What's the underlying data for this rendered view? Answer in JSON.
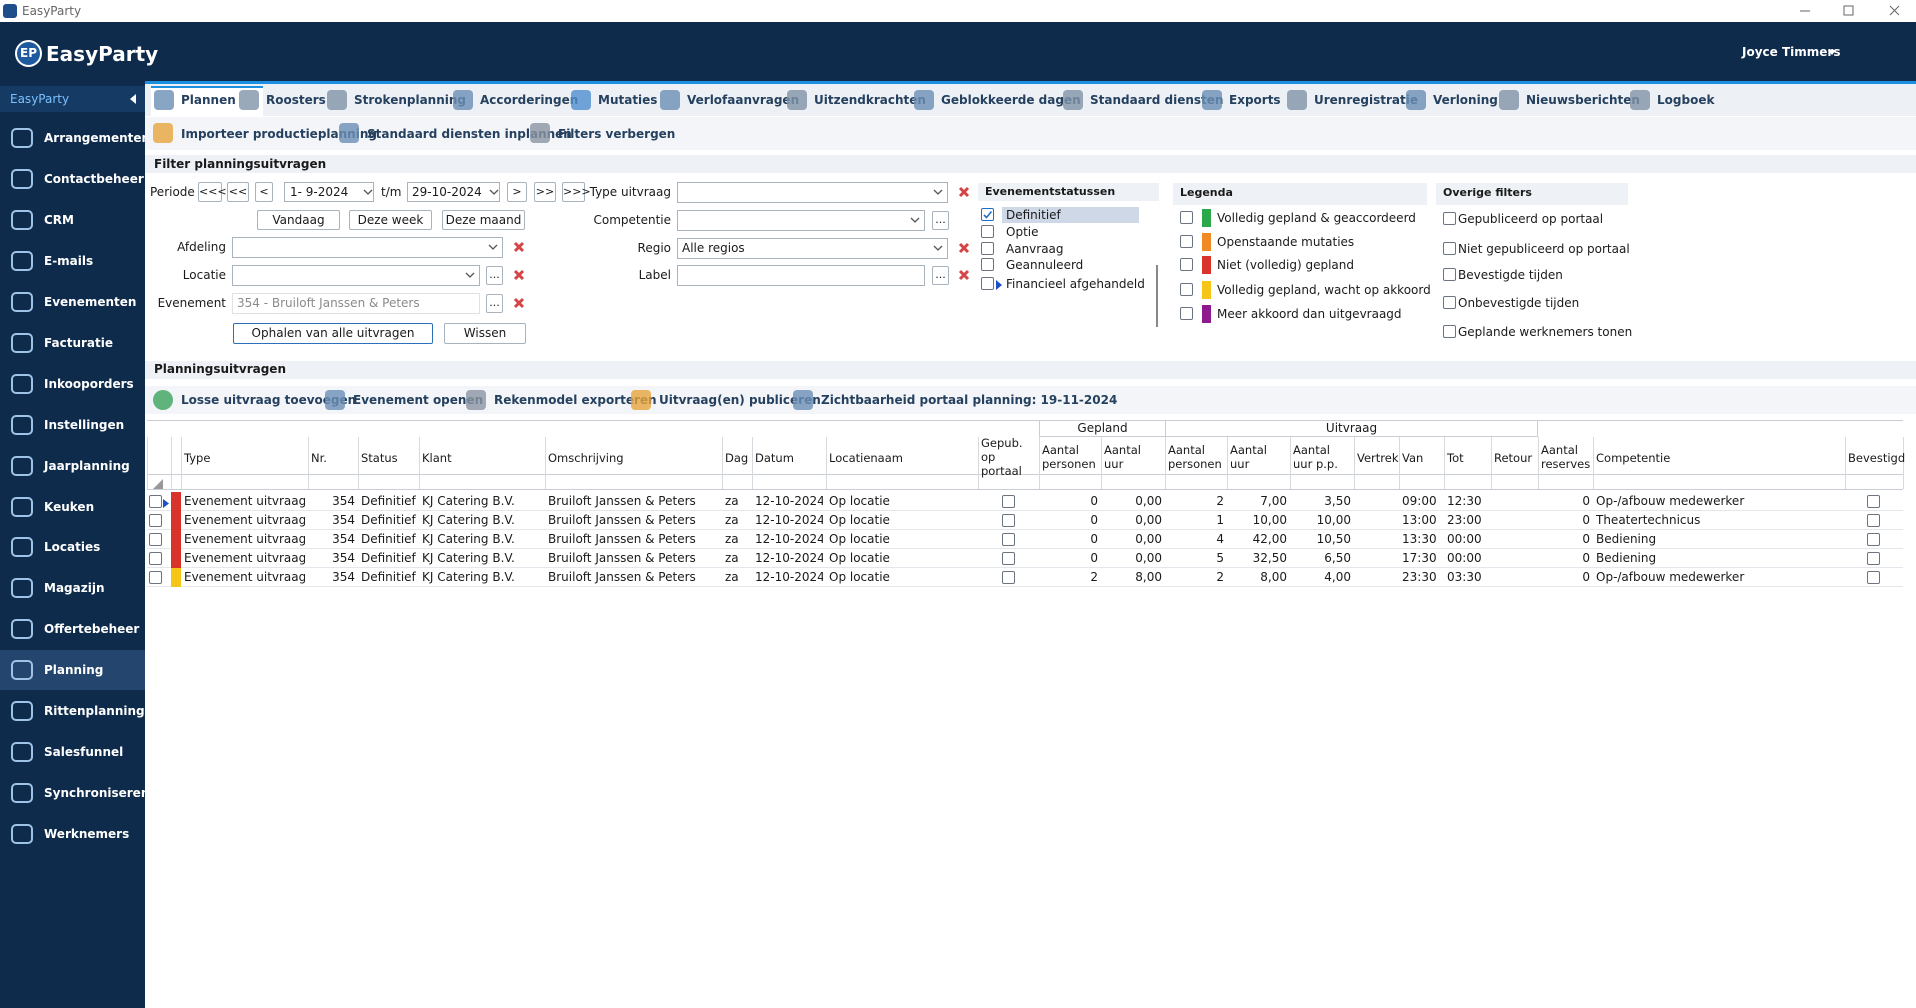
{
  "window_title": "EasyParty",
  "header": {
    "logo_badge": "EP",
    "logo": "EasyParty",
    "user": "Joyce Timmers"
  },
  "sidebar": {
    "title": "EasyParty",
    "items": [
      {
        "label": "Arrangementen"
      },
      {
        "label": "Contactbeheer"
      },
      {
        "label": "CRM"
      },
      {
        "label": "E-mails"
      },
      {
        "label": "Evenementen"
      },
      {
        "label": "Facturatie"
      },
      {
        "label": "Inkooporders"
      },
      {
        "label": "Instellingen"
      },
      {
        "label": "Jaarplanning"
      },
      {
        "label": "Keuken"
      },
      {
        "label": "Locaties"
      },
      {
        "label": "Magazijn"
      },
      {
        "label": "Offertebeheer"
      },
      {
        "label": "Planning",
        "selected": true
      },
      {
        "label": "Rittenplanning"
      },
      {
        "label": "Salesfunnel"
      },
      {
        "label": "Synchroniseren"
      },
      {
        "label": "Werknemers"
      }
    ]
  },
  "tabs": [
    {
      "label": "Plannen",
      "selected": true
    },
    {
      "label": "Roosters"
    },
    {
      "label": "Strokenplanning"
    },
    {
      "label": "Accorderingen"
    },
    {
      "label": "Mutaties"
    },
    {
      "label": "Verlofaanvragen"
    },
    {
      "label": "Uitzendkrachten"
    },
    {
      "label": "Geblokkeerde dagen"
    },
    {
      "label": "Standaard diensten"
    },
    {
      "label": "Exports"
    },
    {
      "label": "Urenregistratie"
    },
    {
      "label": "Verloning"
    },
    {
      "label": "Nieuwsberichten"
    },
    {
      "label": "Logboek"
    }
  ],
  "toolbar": [
    "Importeer productieplanning",
    "Standaard diensten inplannen",
    "Filters verbergen"
  ],
  "filter": {
    "title": "Filter planningsuitvragen",
    "periode": {
      "label": "Periode",
      "back3": "<<<",
      "back2": "<<",
      "back1": "<",
      "from": "1- 9-2024",
      "tm": "t/m",
      "to": "29-10-2024",
      "fwd1": ">",
      "fwd2": ">>",
      "fwd3": ">>>"
    },
    "quick": [
      "Vandaag",
      "Deze week",
      "Deze maand"
    ],
    "afdeling": {
      "label": "Afdeling"
    },
    "locatie": {
      "label": "Locatie"
    },
    "evenement": {
      "label": "Evenement",
      "value": "354 - Bruiloft Janssen & Peters"
    },
    "fetch": "Ophalen van alle uitvragen",
    "clear": "Wissen",
    "type_uitvraag": {
      "label": "Type uitvraag"
    },
    "competentie": {
      "label": "Competentie"
    },
    "regio": {
      "label": "Regio",
      "value": "Alle regios"
    },
    "label": {
      "label": "Label"
    },
    "ellipsis": "...",
    "statuses": {
      "title": "Evenementstatussen",
      "items": [
        {
          "label": "Definitief",
          "checked": true
        },
        {
          "label": "Optie",
          "checked": false
        },
        {
          "label": "Aanvraag",
          "checked": false
        },
        {
          "label": "Geannuleerd",
          "checked": false
        },
        {
          "label": "Financieel afgehandeld",
          "checked": false
        }
      ]
    },
    "legend": {
      "title": "Legenda",
      "items": [
        {
          "label": "Volledig gepland & geaccordeerd",
          "color": "#2aa84a"
        },
        {
          "label": "Openstaande mutaties",
          "color": "#f08a24"
        },
        {
          "label": "Niet (volledig) gepland",
          "color": "#d9342b"
        },
        {
          "label": "Volledig gepland, wacht op akkoord",
          "color": "#f5c518"
        },
        {
          "label": "Meer akkoord dan uitgevraagd",
          "color": "#8e1a8e"
        }
      ]
    },
    "other": {
      "title": "Overige filters",
      "items": [
        "Gepubliceerd op portaal",
        "Niet gepubliceerd op portaal",
        "Bevestigde tijden",
        "Onbevestigde tijden",
        "Geplande werknemers tonen"
      ]
    }
  },
  "section_title": "Planningsuitvragen",
  "toolbar2": [
    "Losse uitvraag toevoegen",
    "Evenement openen",
    "Rekenmodel exporteren",
    "Uitvraag(en) publiceren",
    "Zichtbaarheid portaal planning: 19-11-2024"
  ],
  "table": {
    "groups": [
      "Gepland",
      "Uitvraag"
    ],
    "columns": [
      "Type",
      "Nr.",
      "Status",
      "Klant",
      "Omschrijving",
      "Dag",
      "Datum",
      "Locatienaam",
      "Gepub. op portaal",
      "Aantal personen",
      "Aantal uur",
      "Aantal personen",
      "Aantal uur",
      "Aantal uur p.p.",
      "Vertrek",
      "Van",
      "Tot",
      "Retour",
      "Aantal reserves",
      "Competentie",
      "Bevestigd"
    ],
    "rows": [
      {
        "color": "#d9342b",
        "current": true,
        "cells": [
          "Evenement uitvraag",
          "354",
          "Definitief",
          "KJ Catering B.V.",
          "Bruiloft Janssen & Peters",
          "za",
          "12-10-2024",
          "Op locatie",
          false,
          "0",
          "0,00",
          "2",
          "7,00",
          "3,50",
          null,
          "09:00",
          "12:30",
          null,
          "0",
          "Op-/afbouw medewerker",
          false
        ]
      },
      {
        "color": "#d9342b",
        "cells": [
          "Evenement uitvraag",
          "354",
          "Definitief",
          "KJ Catering B.V.",
          "Bruiloft Janssen & Peters",
          "za",
          "12-10-2024",
          "Op locatie",
          false,
          "0",
          "0,00",
          "1",
          "10,00",
          "10,00",
          null,
          "13:00",
          "23:00",
          null,
          "0",
          "Theatertechnicus",
          false
        ]
      },
      {
        "color": "#d9342b",
        "cells": [
          "Evenement uitvraag",
          "354",
          "Definitief",
          "KJ Catering B.V.",
          "Bruiloft Janssen & Peters",
          "za",
          "12-10-2024",
          "Op locatie",
          false,
          "0",
          "0,00",
          "4",
          "42,00",
          "10,50",
          null,
          "13:30",
          "00:00",
          null,
          "0",
          "Bediening",
          false
        ]
      },
      {
        "color": "#d9342b",
        "cells": [
          "Evenement uitvraag",
          "354",
          "Definitief",
          "KJ Catering B.V.",
          "Bruiloft Janssen & Peters",
          "za",
          "12-10-2024",
          "Op locatie",
          false,
          "0",
          "0,00",
          "5",
          "32,50",
          "6,50",
          null,
          "17:30",
          "00:00",
          null,
          "0",
          "Bediening",
          false
        ]
      },
      {
        "color": "#f5c518",
        "cells": [
          "Evenement uitvraag",
          "354",
          "Definitief",
          "KJ Catering B.V.",
          "Bruiloft Janssen & Peters",
          "za",
          "12-10-2024",
          "Op locatie",
          false,
          "2",
          "8,00",
          "2",
          "8,00",
          "4,00",
          null,
          "23:30",
          "03:30",
          null,
          "0",
          "Op-/afbouw medewerker",
          false
        ]
      }
    ]
  }
}
